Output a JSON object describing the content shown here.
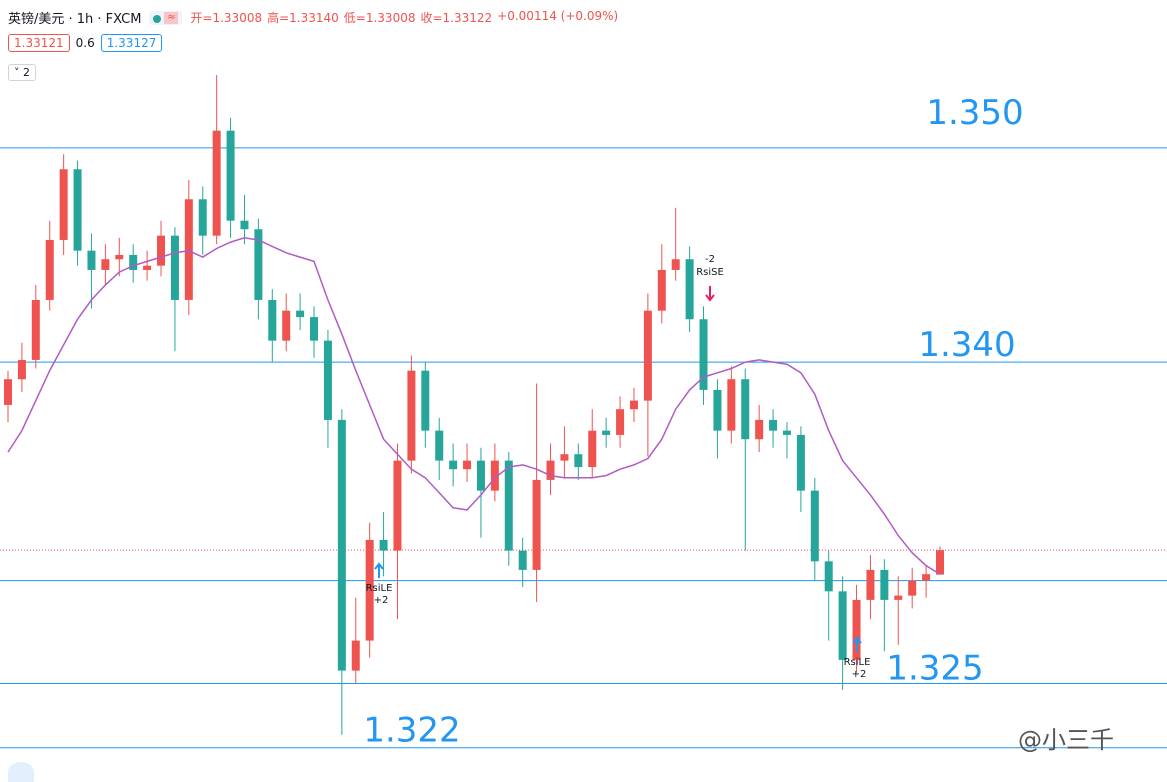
{
  "header": {
    "title": "英镑/美元 · 1h · FXCM",
    "ohlc": [
      "开=1.33008",
      "高=1.33140",
      "低=1.33008",
      "收=1.33122",
      "+0.00114 (+0.09%)"
    ],
    "bid": "1.33121",
    "spread": "0.6",
    "ask": "1.33127",
    "indicator_count": "2"
  },
  "watermark": "@小三千",
  "chart_data": {
    "type": "candlestick",
    "ylim": [
      1.3204,
      1.3569
    ],
    "up_color": "#ef5350",
    "down_color": "#26a69a",
    "candles": {
      "open": [
        1.338,
        1.3392,
        1.3401,
        1.3429,
        1.3457,
        1.349,
        1.3452,
        1.3443,
        1.3448,
        1.345,
        1.3443,
        1.3445,
        1.3459,
        1.3429,
        1.3476,
        1.3459,
        1.3508,
        1.3466,
        1.3462,
        1.3429,
        1.341,
        1.3424,
        1.3421,
        1.341,
        1.3373,
        1.3256,
        1.327,
        1.3317,
        1.3312,
        1.3354,
        1.3396,
        1.3368,
        1.3354,
        1.335,
        1.3354,
        1.334,
        1.3354,
        1.3312,
        1.3303,
        1.3345,
        1.3354,
        1.3357,
        1.3351,
        1.3368,
        1.3366,
        1.3378,
        1.3382,
        1.3424,
        1.3443,
        1.3448,
        1.342,
        1.3387,
        1.3368,
        1.3392,
        1.3364,
        1.3373,
        1.3368,
        1.3366,
        1.334,
        1.3307,
        1.3293,
        1.3261,
        1.3289,
        1.3303,
        1.3289,
        1.3291,
        1.3298,
        1.33008
      ],
      "high": [
        1.3396,
        1.3409,
        1.3436,
        1.3466,
        1.3497,
        1.3494,
        1.346,
        1.3455,
        1.3458,
        1.3455,
        1.3452,
        1.3466,
        1.3463,
        1.3485,
        1.3482,
        1.3534,
        1.3514,
        1.3478,
        1.3467,
        1.3434,
        1.3432,
        1.3432,
        1.3426,
        1.3415,
        1.3378,
        1.329,
        1.3325,
        1.333,
        1.3362,
        1.3403,
        1.34,
        1.3374,
        1.3362,
        1.3362,
        1.336,
        1.3362,
        1.3358,
        1.3318,
        1.339,
        1.3362,
        1.337,
        1.3362,
        1.3378,
        1.3374,
        1.3384,
        1.3388,
        1.3432,
        1.3455,
        1.3472,
        1.3454,
        1.3426,
        1.3392,
        1.3398,
        1.3397,
        1.338,
        1.3378,
        1.3372,
        1.337,
        1.3346,
        1.3312,
        1.33,
        1.3296,
        1.331,
        1.3308,
        1.33,
        1.3304,
        1.3305,
        1.3314
      ],
      "low": [
        1.3372,
        1.3386,
        1.3397,
        1.3424,
        1.345,
        1.3445,
        1.3425,
        1.3436,
        1.344,
        1.3437,
        1.3438,
        1.344,
        1.3405,
        1.3422,
        1.345,
        1.3455,
        1.3458,
        1.3455,
        1.342,
        1.34,
        1.3405,
        1.3415,
        1.3402,
        1.336,
        1.3226,
        1.325,
        1.3262,
        1.33,
        1.328,
        1.3348,
        1.336,
        1.3345,
        1.3342,
        1.3344,
        1.3318,
        1.3335,
        1.3305,
        1.3295,
        1.3288,
        1.3338,
        1.3346,
        1.3345,
        1.3346,
        1.336,
        1.336,
        1.3372,
        1.3356,
        1.3418,
        1.3438,
        1.3414,
        1.338,
        1.3355,
        1.3362,
        1.3312,
        1.3358,
        1.336,
        1.3355,
        1.333,
        1.3298,
        1.327,
        1.3247,
        1.3255,
        1.328,
        1.3265,
        1.3268,
        1.3285,
        1.329,
        1.33008
      ],
      "close": [
        1.3392,
        1.3401,
        1.3429,
        1.3457,
        1.349,
        1.3452,
        1.3443,
        1.3448,
        1.345,
        1.3443,
        1.3445,
        1.3459,
        1.3429,
        1.3476,
        1.3459,
        1.3508,
        1.3466,
        1.3462,
        1.3429,
        1.341,
        1.3424,
        1.3421,
        1.341,
        1.3373,
        1.3256,
        1.327,
        1.3317,
        1.3312,
        1.3354,
        1.3396,
        1.3368,
        1.3354,
        1.335,
        1.3354,
        1.334,
        1.3354,
        1.3312,
        1.3303,
        1.3345,
        1.3354,
        1.3357,
        1.3351,
        1.3368,
        1.3366,
        1.3378,
        1.3382,
        1.3424,
        1.3443,
        1.3448,
        1.342,
        1.3387,
        1.3368,
        1.3392,
        1.3364,
        1.3373,
        1.3368,
        1.3366,
        1.334,
        1.3307,
        1.3293,
        1.3261,
        1.3289,
        1.3303,
        1.3289,
        1.3291,
        1.3298,
        1.3301,
        1.33122
      ]
    },
    "ma": {
      "color": "#b05cc4",
      "values": [
        1.3358,
        1.3368,
        1.3382,
        1.3396,
        1.3408,
        1.342,
        1.3429,
        1.3436,
        1.3442,
        1.3445,
        1.3447,
        1.3449,
        1.3451,
        1.3452,
        1.3449,
        1.3453,
        1.3456,
        1.3458,
        1.3457,
        1.3454,
        1.3451,
        1.3449,
        1.3447,
        1.3429,
        1.3413,
        1.3396,
        1.338,
        1.3364,
        1.3357,
        1.335,
        1.3346,
        1.3339,
        1.3332,
        1.3331,
        1.3338,
        1.3346,
        1.3351,
        1.3352,
        1.335,
        1.3347,
        1.3346,
        1.3346,
        1.3346,
        1.3347,
        1.335,
        1.3352,
        1.3355,
        1.3364,
        1.3378,
        1.3387,
        1.3393,
        1.3395,
        1.3397,
        1.34,
        1.3401,
        1.34,
        1.3399,
        1.3395,
        1.3385,
        1.3368,
        1.3354,
        1.3346,
        1.3338,
        1.3329,
        1.3319,
        1.3311,
        1.3305,
        1.3301
      ]
    },
    "hline_color": "#2196f3",
    "hlines": [
      {
        "value": 1.35,
        "label": "1.350"
      },
      {
        "value": 1.34,
        "label": "1.340"
      },
      {
        "value": 1.325,
        "label": "1.325"
      },
      {
        "value": 1.322,
        "label": "1.322"
      }
    ],
    "support_line": 1.3298,
    "signals": [
      {
        "text": "RsiLE",
        "qty": "+2"
      },
      {
        "text": "RsiSE",
        "qty": "-2"
      },
      {
        "text": "RsiLE",
        "qty": "+2"
      }
    ]
  }
}
